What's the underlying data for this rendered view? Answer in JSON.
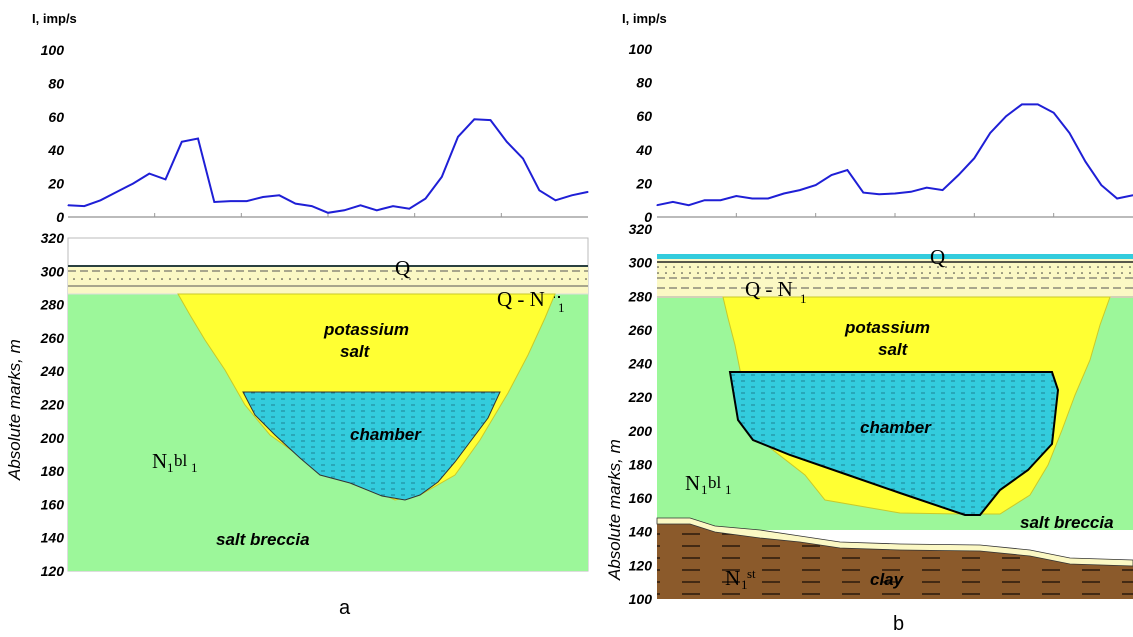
{
  "panels": [
    {
      "id": "a",
      "panel_label": "a",
      "chart_y_label": "I, imp/s",
      "section_y_label": "",
      "labels": {
        "potassium": "potassium",
        "salt": "salt",
        "chamber": "chamber",
        "breccia": "salt breccia",
        "q": "Q",
        "qn_base": "Q - N",
        "qn_sub": "1",
        "nbl_base": "N",
        "nbl_sub1": "1",
        "nbl_mid": "bl",
        "nbl_sub2": "1"
      }
    },
    {
      "id": "b",
      "panel_label": "b",
      "chart_y_label": "I, imp/s",
      "section_y_label": "Absolute marks, m",
      "labels": {
        "potassium": "potassium",
        "salt": "salt",
        "chamber": "chamber",
        "breccia": "salt breccia",
        "clay": "clay",
        "q": "Q",
        "qn_base": "Q - N",
        "qn_sub": "1",
        "nbl_base": "N",
        "nbl_sub1": "1",
        "nbl_mid": "bl",
        "nbl_sub2": "1",
        "nst_base": "N",
        "nst_sub": "1",
        "nst_sup": "st"
      }
    }
  ],
  "section_left_y_label": "Absolute marks, m",
  "colors": {
    "curve": "#1f1fd6",
    "breccia": "#9cf79a",
    "salt": "#ffff33",
    "chamber": "#33ccdd",
    "clay": "#8b5a2b",
    "quaternary": "#fbf8c4"
  },
  "chart_data": [
    {
      "type": "line",
      "ylabel": "I, imp/s",
      "ylim": [
        0,
        100
      ],
      "yticks": [
        0,
        20,
        40,
        60,
        80,
        100
      ],
      "series": [
        {
          "values": [
            7,
            6.5,
            10,
            15,
            20,
            26,
            22.5,
            45,
            47,
            9,
            9.5,
            9.5,
            12,
            13,
            8,
            6.5,
            2.5,
            4,
            7,
            4,
            6.5,
            5,
            11,
            24,
            48,
            58.5,
            58,
            45,
            35,
            16,
            10,
            13,
            15
          ]
        }
      ]
    },
    {
      "type": "line",
      "ylabel": "I, imp/s",
      "ylim": [
        0,
        100
      ],
      "yticks": [
        0,
        20,
        40,
        60,
        80,
        100
      ],
      "series": [
        {
          "values": [
            7,
            9,
            7,
            10,
            10,
            12.5,
            11,
            11,
            14,
            16,
            19,
            25,
            28,
            14.5,
            13.5,
            14,
            15,
            17.5,
            16,
            25,
            35,
            50,
            60,
            67,
            67,
            62,
            50,
            33,
            19,
            11,
            13
          ]
        }
      ]
    },
    {
      "type": "table",
      "title": "",
      "ylabel": "Absolute marks, m",
      "ylim": [
        120,
        320
      ],
      "yticks": [
        120,
        140,
        160,
        180,
        200,
        220,
        240,
        260,
        280,
        300,
        320
      ]
    },
    {
      "type": "table",
      "title": "",
      "ylabel": "Absolute marks, m",
      "ylim": [
        100,
        320
      ],
      "yticks": [
        100,
        120,
        140,
        160,
        180,
        200,
        220,
        240,
        260,
        280,
        300,
        320
      ]
    }
  ]
}
